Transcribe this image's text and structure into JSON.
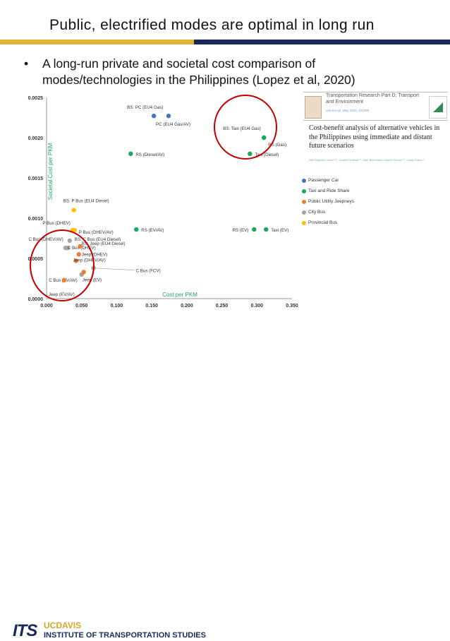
{
  "slide": {
    "title": "Public, electrified modes are optimal in long run",
    "bullet_mark": "•",
    "bullet_text": "A long-run private and societal cost comparison of modes/technologies in the Philippines (Lopez et al, 2020)"
  },
  "colors": {
    "rule_gold": "#e3b534",
    "rule_navy": "#1b2a5c",
    "passenger_car": "#4472c4",
    "taxi_rideshare": "#1aa95a",
    "jeepney": "#ed7d31",
    "city_bus": "#a5a5a5",
    "provincial_bus": "#ffc000",
    "circle": "#c00000"
  },
  "paper": {
    "journal": "Transportation Research Part D: Transport and Environment",
    "meta": "Volume 82, May 2020, 102308",
    "title": "Cost-benefit analysis of alternative vehicles in the Philippines using immediate and distant future scenarios",
    "authors": "Neil Stephen Lopez ᵃ ᵇ, Jenwell Soliman ᵃ, Jose Bienvenido Manuel Biona ᵃ ᵇ, Lewis Fulton ᶜ"
  },
  "legend": [
    {
      "label": "Passenger Car",
      "color_key": "passenger_car"
    },
    {
      "label": "Taxi and Ride Share",
      "color_key": "taxi_rideshare"
    },
    {
      "label": "Public Utility Jeepneys",
      "color_key": "jeepney"
    },
    {
      "label": "City Bus",
      "color_key": "city_bus"
    },
    {
      "label": "Provincial Bus",
      "color_key": "provincial_bus"
    }
  ],
  "footer": {
    "its": "ITS",
    "ucdavis": "UCDAVIS",
    "institute": "INSTITUTE OF TRANSPORTATION STUDIES"
  },
  "chart_data": {
    "type": "scatter",
    "xlabel": "Cost per PKM",
    "ylabel": "Societal Cost per PKM",
    "xlim": [
      0,
      0.35
    ],
    "ylim": [
      0,
      0.0025
    ],
    "x_ticks": [
      "0.000",
      "0.050",
      "0.100",
      "0.150",
      "0.200",
      "0.250",
      "0.300",
      "0.350"
    ],
    "y_ticks": [
      "0.0000",
      "0.0005",
      "0.0010",
      "0.0015",
      "0.0020",
      "0.0025"
    ],
    "grid": false,
    "points": [
      {
        "label": "BS: PC (EU4 Gas)",
        "x": 0.153,
        "y": 0.00227,
        "group": "passenger_car"
      },
      {
        "label": "PC (EU4 Gas/AV)",
        "x": 0.174,
        "y": 0.00227,
        "group": "passenger_car"
      },
      {
        "label": "BS: Taxi (EU4 Gas)",
        "x": 0.31,
        "y": 0.002,
        "group": "taxi_rideshare"
      },
      {
        "label": "RS (Gas)",
        "x": 0.31,
        "y": 0.002,
        "group": "taxi_rideshare"
      },
      {
        "label": "Taxi (Diesel)",
        "x": 0.29,
        "y": 0.0018,
        "group": "taxi_rideshare"
      },
      {
        "label": "RS (Diesel/AV)",
        "x": 0.12,
        "y": 0.0018,
        "group": "taxi_rideshare"
      },
      {
        "label": "RS (EV/AV)",
        "x": 0.128,
        "y": 0.00086,
        "group": "taxi_rideshare"
      },
      {
        "label": "RS (EV)",
        "x": 0.296,
        "y": 0.00086,
        "group": "taxi_rideshare"
      },
      {
        "label": "Taxi (EV)",
        "x": 0.313,
        "y": 0.00086,
        "group": "taxi_rideshare"
      },
      {
        "label": "BS: P Bus (EU4 Diesel)",
        "x": 0.039,
        "y": 0.0011,
        "group": "provincial_bus"
      },
      {
        "label": "P Bus (DHEV)",
        "x": 0.037,
        "y": 0.00085,
        "group": "provincial_bus"
      },
      {
        "label": "P Bus (DHEV/AV)",
        "x": 0.04,
        "y": 0.00085,
        "group": "provincial_bus"
      },
      {
        "label": "BS: C Bus (EU4 Diesel)",
        "x": 0.033,
        "y": 0.00072,
        "group": "city_bus"
      },
      {
        "label": "C Bus (DHEV/AV)",
        "x": 0.027,
        "y": 0.00063,
        "group": "city_bus"
      },
      {
        "label": "C Bus (DHEV)",
        "x": 0.03,
        "y": 0.00063,
        "group": "city_bus"
      },
      {
        "label": "C Bus (FCV)",
        "x": 0.067,
        "y": 0.00038,
        "group": "city_bus"
      },
      {
        "label": "C Bus (EV/AV)",
        "x": 0.05,
        "y": 0.0003,
        "group": "city_bus"
      },
      {
        "label": "BS: Jeep (EU4 Diesel)",
        "x": 0.048,
        "y": 0.00065,
        "group": "jeepney"
      },
      {
        "label": "Jeep (DHEV)",
        "x": 0.046,
        "y": 0.00055,
        "group": "jeepney"
      },
      {
        "label": "Jeep (DHEV/AV)",
        "x": 0.042,
        "y": 0.00047,
        "group": "jeepney"
      },
      {
        "label": "Jeep (EV)",
        "x": 0.053,
        "y": 0.00033,
        "group": "jeepney"
      },
      {
        "label": "Jeep (EV/AV)",
        "x": 0.025,
        "y": 0.00023,
        "group": "jeepney"
      }
    ]
  }
}
